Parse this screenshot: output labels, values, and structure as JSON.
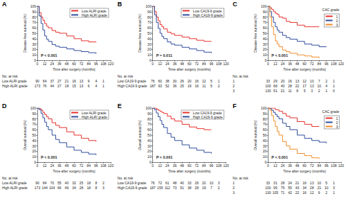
{
  "chart_data": [
    {
      "panel": "A",
      "type": "step",
      "x": [
        0,
        3,
        6,
        9,
        12,
        15,
        18,
        24,
        30,
        36,
        48,
        60,
        72,
        84,
        96,
        108
      ],
      "series": [
        {
          "name": "Low ALRI grade",
          "color": "#e8302b",
          "values": [
            100,
            88,
            80,
            74,
            68,
            63,
            60,
            55,
            52,
            50,
            45,
            40,
            36,
            34,
            33,
            null
          ]
        },
        {
          "name": "High ALRI grade",
          "color": "#2e4c9c",
          "values": [
            100,
            82,
            68,
            56,
            45,
            39,
            35,
            29,
            26,
            24,
            21,
            18,
            16,
            14,
            12,
            null
          ]
        }
      ],
      "xlabel": "Time after surgery (months)",
      "ylabel": "Disease-free survival (%)",
      "xlim": [
        0,
        120
      ],
      "xticks": [
        0,
        12,
        24,
        36,
        48,
        60,
        72,
        84,
        96,
        108,
        120
      ],
      "ylim": [
        0,
        100
      ],
      "yticks": [
        0,
        10,
        20,
        30,
        40,
        50,
        60,
        70,
        80,
        90,
        100
      ],
      "grid": false,
      "legend": "upper right",
      "annotation": "P < 0.001",
      "risk_table": {
        "title": "No. at risk",
        "x": [
          0,
          12,
          24,
          36,
          48,
          60,
          72,
          84,
          96,
          108
        ],
        "rows": [
          {
            "name": "Low ALRI grade",
            "values": [
              90,
              64,
              37,
              27,
              21,
              16,
              13,
              9,
              4,
              1
            ]
          },
          {
            "name": "High ALRI grade",
            "values": [
              173,
              76,
              44,
              27,
              18,
              15,
              13,
              6,
              4,
              1
            ]
          }
        ]
      }
    },
    {
      "panel": "B",
      "type": "step",
      "x": [
        0,
        3,
        6,
        9,
        12,
        15,
        18,
        24,
        30,
        36,
        48,
        60,
        72,
        84,
        96,
        108
      ],
      "series": [
        {
          "name": "Low CA19-9 grade",
          "color": "#e8302b",
          "values": [
            100,
            90,
            80,
            73,
            66,
            62,
            58,
            52,
            49,
            46,
            43,
            40,
            37,
            35,
            35,
            null
          ]
        },
        {
          "name": "High CA19-9 grade",
          "color": "#2e4c9c",
          "values": [
            100,
            84,
            70,
            59,
            50,
            44,
            40,
            34,
            30,
            28,
            24,
            21,
            18,
            15,
            13,
            null
          ]
        }
      ],
      "xlabel": "Time after surgery (months)",
      "ylabel": "Disease-free survival (%)",
      "xlim": [
        0,
        120
      ],
      "xticks": [
        0,
        12,
        24,
        36,
        48,
        60,
        72,
        84,
        96,
        108,
        120
      ],
      "ylim": [
        0,
        100
      ],
      "yticks": [
        0,
        10,
        20,
        30,
        40,
        50,
        60,
        70,
        80,
        90,
        100
      ],
      "grid": false,
      "legend": "upper right",
      "annotation": "P = 0.011",
      "risk_table": {
        "title": "No. at risk",
        "x": [
          0,
          12,
          24,
          36,
          48,
          60,
          72,
          84,
          96,
          108
        ],
        "rows": [
          {
            "name": "Low CA19-9 grade",
            "values": [
              76,
              60,
              38,
              30,
              26,
              20,
              16,
              12,
              5,
              1
            ]
          },
          {
            "name": "High CA19-9 grade",
            "values": [
              187,
              93,
              52,
              36,
              25,
              19,
              16,
              11,
              5,
              2
            ]
          }
        ]
      }
    },
    {
      "panel": "C",
      "type": "step",
      "x": [
        0,
        3,
        6,
        9,
        12,
        15,
        18,
        24,
        30,
        36,
        48,
        60,
        72,
        84,
        96,
        108
      ],
      "series": [
        {
          "name": "1",
          "color": "#e8302b",
          "values": [
            100,
            97,
            94,
            90,
            87,
            85,
            80,
            78,
            72,
            70,
            65,
            62,
            62,
            62,
            null,
            null
          ]
        },
        {
          "name": "2",
          "color": "#2e4c9c",
          "values": [
            100,
            90,
            80,
            70,
            62,
            56,
            52,
            46,
            42,
            39,
            35,
            30,
            28,
            25,
            25,
            null
          ]
        },
        {
          "name": "3",
          "color": "#f28c28",
          "values": [
            100,
            80,
            62,
            48,
            36,
            30,
            25,
            19,
            16,
            13,
            10,
            8,
            6,
            4,
            null,
            null
          ]
        }
      ],
      "legend_title": "CAC grade",
      "xlabel": "Time after surgery (months)",
      "ylabel": "Disease-free survival (%)",
      "xlim": [
        0,
        120
      ],
      "xticks": [
        0,
        12,
        24,
        36,
        48,
        60,
        72,
        84,
        96,
        108,
        120
      ],
      "ylim": [
        0,
        100
      ],
      "yticks": [
        0,
        10,
        20,
        30,
        40,
        50,
        60,
        70,
        80,
        90,
        100
      ],
      "grid": false,
      "legend": "upper right",
      "annotation": "P < 0.001",
      "risk_table": {
        "title": "No. at risk",
        "x": [
          0,
          12,
          24,
          36,
          48,
          60,
          72,
          84,
          96,
          108
        ],
        "rows": [
          {
            "name": "1",
            "values": [
              33,
              29,
              20,
              16,
              13,
              12,
              10,
              7,
              2,
              1
            ]
          },
          {
            "name": "2",
            "values": [
              100,
              68,
              40,
              28,
              22,
              17,
              13,
              10,
              4,
              1
            ]
          },
          {
            "name": "3",
            "values": [
              130,
              51,
              21,
              11,
              8,
              5,
              3,
              2,
              1,
              0
            ]
          }
        ]
      }
    },
    {
      "panel": "D",
      "type": "step",
      "x": [
        0,
        3,
        6,
        9,
        12,
        15,
        18,
        24,
        30,
        36,
        48,
        60,
        72,
        84,
        96,
        108
      ],
      "series": [
        {
          "name": "Low ALRI grade",
          "color": "#e8302b",
          "values": [
            100,
            99,
            96,
            92,
            88,
            84,
            80,
            73,
            68,
            64,
            56,
            50,
            44,
            40,
            38,
            null
          ]
        },
        {
          "name": "High ALRI grade",
          "color": "#2e4c9c",
          "values": [
            100,
            97,
            90,
            82,
            74,
            66,
            60,
            50,
            42,
            36,
            28,
            22,
            18,
            15,
            13,
            null
          ]
        }
      ],
      "xlabel": "Time after surgery (months)",
      "ylabel": "Overall survival (%)",
      "xlim": [
        0,
        120
      ],
      "xticks": [
        0,
        12,
        24,
        36,
        48,
        60,
        72,
        84,
        96,
        108,
        120
      ],
      "ylim": [
        0,
        100
      ],
      "yticks": [
        0,
        10,
        20,
        30,
        40,
        50,
        60,
        70,
        80,
        90,
        100
      ],
      "grid": false,
      "legend": "upper right",
      "annotation": "P < 0.001",
      "risk_table": {
        "title": "No. at risk",
        "x": [
          0,
          12,
          24,
          36,
          48,
          60,
          72,
          84,
          96,
          108
        ],
        "rows": [
          {
            "name": "Low ALRI grade",
            "values": [
              90,
              84,
              70,
              55,
              40,
              32,
              25,
              18,
              8,
              2
            ]
          },
          {
            "name": "High ALRI grade",
            "values": [
              173,
              144,
              104,
              66,
              46,
              34,
              28,
              18,
              8,
              3
            ]
          }
        ]
      }
    },
    {
      "panel": "E",
      "type": "step",
      "x": [
        0,
        3,
        6,
        9,
        12,
        15,
        18,
        24,
        30,
        36,
        48,
        60,
        72,
        84,
        96,
        108
      ],
      "series": [
        {
          "name": "Low CA19-9 grade",
          "color": "#e8302b",
          "values": [
            100,
            100,
            98,
            96,
            94,
            92,
            90,
            85,
            80,
            76,
            70,
            65,
            62,
            60,
            60,
            null
          ]
        },
        {
          "name": "High CA19-9 grade",
          "color": "#2e4c9c",
          "values": [
            100,
            97,
            91,
            84,
            77,
            70,
            64,
            53,
            46,
            40,
            32,
            26,
            22,
            18,
            16,
            null
          ]
        }
      ],
      "xlabel": "Time after surgery (months)",
      "ylabel": "Overall survival (%)",
      "xlim": [
        0,
        120
      ],
      "xticks": [
        0,
        12,
        24,
        36,
        48,
        60,
        72,
        84,
        96,
        108,
        120
      ],
      "ylim": [
        0,
        100
      ],
      "yticks": [
        0,
        10,
        20,
        30,
        40,
        50,
        60,
        70,
        80,
        90,
        100
      ],
      "grid": false,
      "legend": "upper right",
      "annotation": "P < 0.001",
      "risk_table": {
        "title": "No. at risk",
        "x": [
          0,
          12,
          24,
          36,
          48,
          60,
          72,
          84,
          96,
          108
        ],
        "rows": [
          {
            "name": "Low CA19-9 grade",
            "values": [
              76,
              72,
              61,
              48,
              40,
              33,
              26,
              20,
              10,
              3
            ]
          },
          {
            "name": "High CA19-9 grade",
            "values": [
              187,
              155,
              112,
              73,
              51,
              38,
              28,
              19,
              7,
              2
            ]
          }
        ]
      }
    },
    {
      "panel": "F",
      "type": "step",
      "x": [
        0,
        3,
        6,
        9,
        12,
        15,
        18,
        24,
        30,
        36,
        48,
        60,
        72,
        84,
        96,
        108
      ],
      "series": [
        {
          "name": "1",
          "color": "#e8302b",
          "values": [
            100,
            100,
            100,
            100,
            97,
            97,
            94,
            90,
            85,
            82,
            75,
            70,
            66,
            66,
            null,
            null
          ]
        },
        {
          "name": "2",
          "color": "#2e4c9c",
          "values": [
            100,
            99,
            96,
            92,
            88,
            84,
            80,
            72,
            66,
            60,
            50,
            44,
            40,
            37,
            35,
            null
          ]
        },
        {
          "name": "3",
          "color": "#f28c28",
          "values": [
            100,
            96,
            86,
            76,
            66,
            57,
            50,
            38,
            30,
            24,
            16,
            12,
            8,
            6,
            null,
            null
          ]
        }
      ],
      "legend_title": "CAC grade",
      "xlabel": "Time after surgery (months)",
      "ylabel": "Overall survival (%)",
      "xlim": [
        0,
        120
      ],
      "xticks": [
        0,
        12,
        24,
        36,
        48,
        60,
        72,
        84,
        96,
        108,
        120
      ],
      "ylim": [
        0,
        100
      ],
      "yticks": [
        0,
        10,
        20,
        30,
        40,
        50,
        60,
        70,
        80,
        90,
        100
      ],
      "grid": false,
      "legend": "upper right",
      "annotation": "P < 0.001",
      "risk_table": {
        "title": "No. at risk",
        "x": [
          0,
          12,
          24,
          36,
          48,
          60,
          72,
          84,
          96,
          108
        ],
        "rows": [
          {
            "name": "1",
            "values": [
              33,
              31,
              28,
              24,
              21,
              16,
              13,
              10,
              5,
              1
            ]
          },
          {
            "name": "2",
            "values": [
              100,
              95,
              75,
              55,
              43,
              34,
              28,
              21,
              10,
              3
            ]
          },
          {
            "name": "3",
            "values": [
              130,
              105,
              71,
              42,
              22,
              16,
              12,
              6,
              2,
              1
            ]
          }
        ]
      }
    }
  ]
}
